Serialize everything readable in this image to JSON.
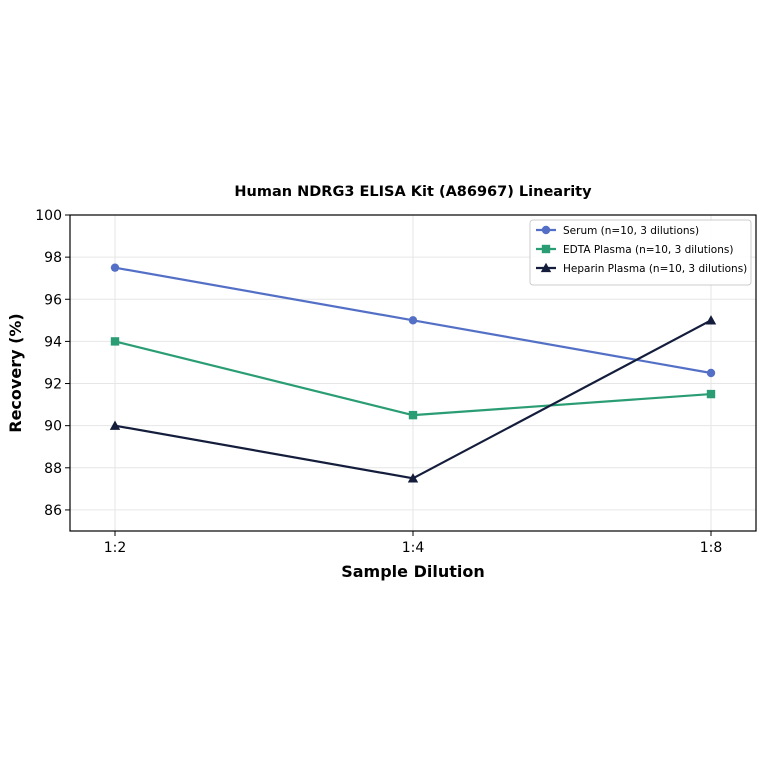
{
  "chart_data": {
    "type": "line",
    "title": "Human NDRG3 ELISA Kit (A86967) Linearity",
    "xlabel": "Sample Dilution",
    "ylabel": "Recovery (%)",
    "categories": [
      "1:2",
      "1:4",
      "1:8"
    ],
    "ylim": [
      85,
      100
    ],
    "yticks": [
      86,
      88,
      90,
      92,
      94,
      96,
      98,
      100
    ],
    "grid": true,
    "legend_position": "top-right",
    "series": [
      {
        "name": "Serum (n=10, 3 dilutions)",
        "values": [
          97.5,
          95.0,
          92.5
        ],
        "color": "#5470c6",
        "marker": "circle"
      },
      {
        "name": "EDTA Plasma (n=10, 3 dilutions)",
        "values": [
          94.0,
          90.5,
          91.5
        ],
        "color": "#2a9d74",
        "marker": "square"
      },
      {
        "name": "Heparin Plasma (n=10, 3 dilutions)",
        "values": [
          90.0,
          87.5,
          95.0
        ],
        "color": "#141e3c",
        "marker": "triangle"
      }
    ]
  }
}
